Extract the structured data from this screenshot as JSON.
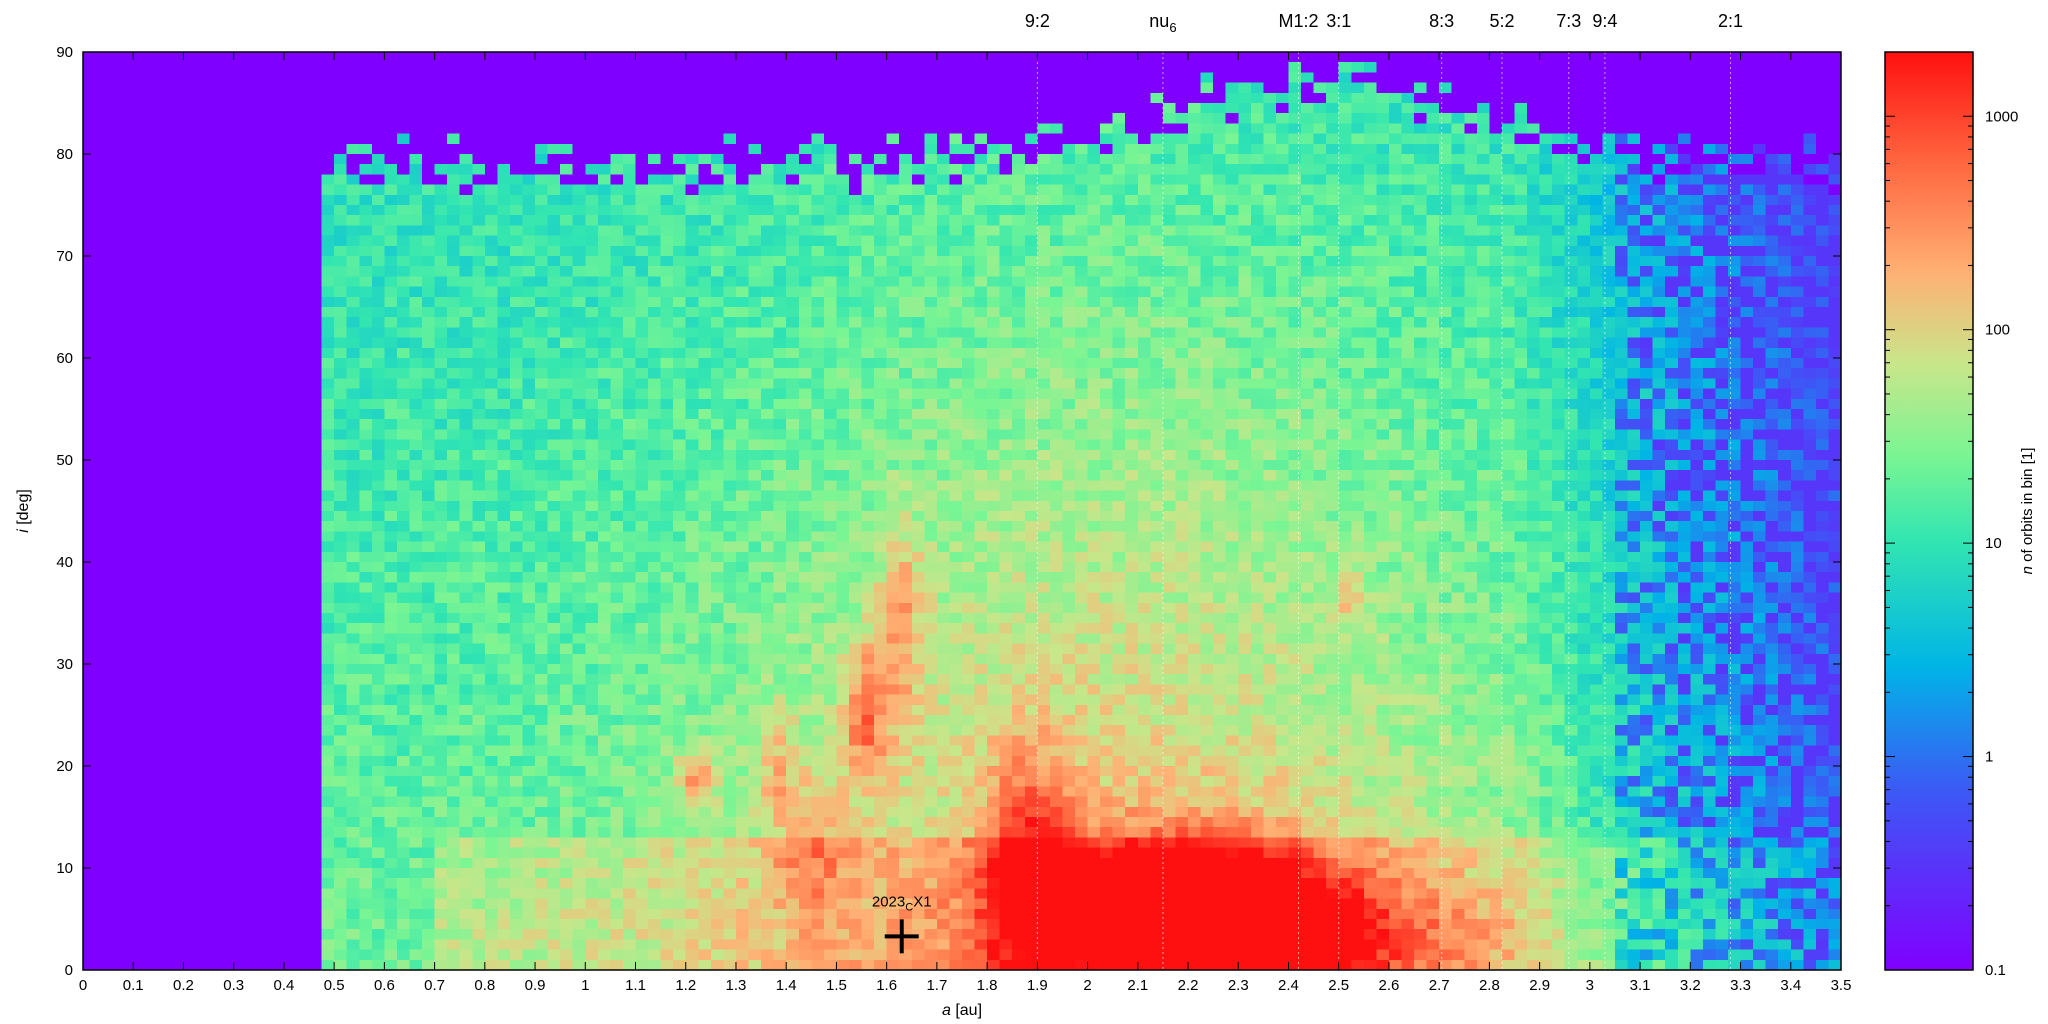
{
  "chart_data": {
    "type": "heatmap",
    "xlabel": {
      "var": "a",
      "unit": " [au]"
    },
    "ylabel": {
      "var": "i",
      "unit": " [deg]"
    },
    "xlim": [
      0,
      3.5
    ],
    "ylim": [
      0,
      90
    ],
    "x_ticks": [
      "0",
      "0.1",
      "0.2",
      "0.3",
      "0.4",
      "0.5",
      "0.6",
      "0.7",
      "0.8",
      "0.9",
      "1",
      "1.1",
      "1.2",
      "1.3",
      "1.4",
      "1.5",
      "1.6",
      "1.7",
      "1.8",
      "1.9",
      "2",
      "2.1",
      "2.2",
      "2.3",
      "2.4",
      "2.5",
      "2.6",
      "2.7",
      "2.8",
      "2.9",
      "3",
      "3.1",
      "3.2",
      "3.3",
      "3.4",
      "3.5"
    ],
    "y_ticks": [
      "0",
      "10",
      "20",
      "30",
      "40",
      "50",
      "60",
      "70",
      "80",
      "90"
    ],
    "colorbar": {
      "label_var": "n",
      "label_rest": " of orbits in bin [1]",
      "scale": "log",
      "range": [
        0.1,
        2000
      ],
      "ticks": [
        "0.1",
        "1",
        "10",
        "100",
        "1000"
      ]
    },
    "resonances": [
      {
        "label": "9:2",
        "a": 1.9
      },
      {
        "label": "nu",
        "sub": "6",
        "a": 2.15
      },
      {
        "label": "M1:2",
        "a": 2.42
      },
      {
        "label": "3:1",
        "a": 2.5
      },
      {
        "label": "8:3",
        "a": 2.705
      },
      {
        "label": "5:2",
        "a": 2.825
      },
      {
        "label": "7:3",
        "a": 2.958
      },
      {
        "label": "9:4",
        "a": 3.03
      },
      {
        "label": "2:1",
        "a": 3.28
      }
    ],
    "marker": {
      "label": "2023",
      "sub": "C",
      "suffix": "X1",
      "a": 1.63,
      "i": 3.3
    }
  }
}
